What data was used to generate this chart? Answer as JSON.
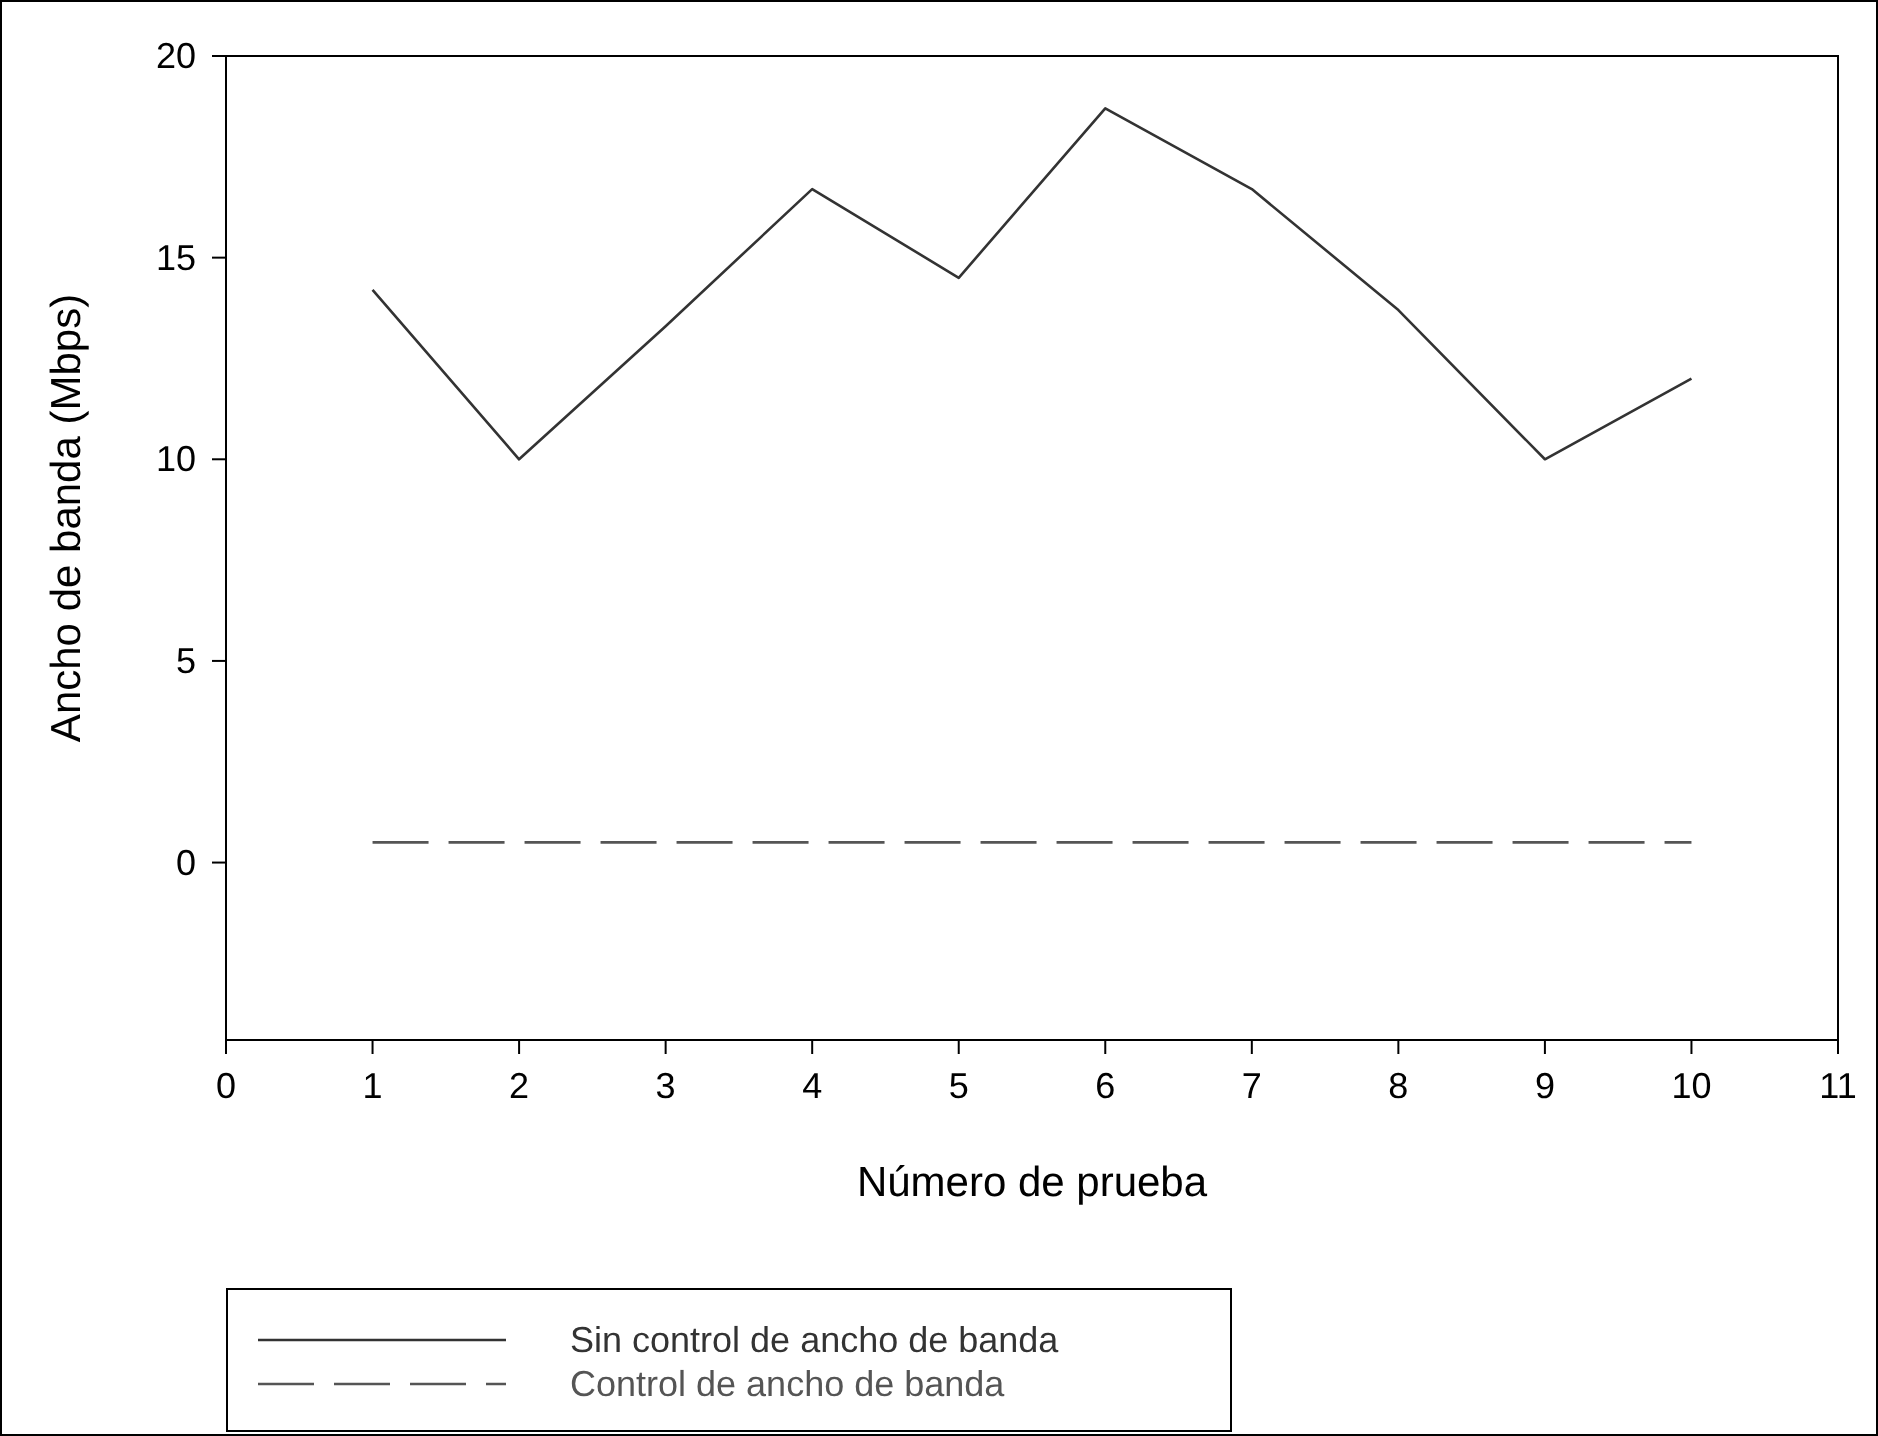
{
  "chart_data": {
    "type": "line",
    "xlabel": "Número de prueba",
    "ylabel": "Ancho de banda (Mbps)",
    "x": [
      1,
      2,
      3,
      4,
      5,
      6,
      7,
      8,
      9,
      10
    ],
    "series": [
      {
        "name": "Sin control de ancho de banda",
        "color": "#333333",
        "line_style": "solid",
        "values": [
          14.2,
          10.0,
          13.3,
          16.7,
          14.5,
          18.7,
          16.7,
          13.7,
          10.0,
          12.0
        ]
      },
      {
        "name": "Control de ancho de banda",
        "color": "#555555",
        "line_style": "dashed",
        "values": [
          0.5,
          0.5,
          0.5,
          0.5,
          0.5,
          0.5,
          0.5,
          0.5,
          0.5,
          0.5
        ]
      }
    ],
    "xlim": [
      0,
      11
    ],
    "xticks": [
      0,
      1,
      2,
      3,
      4,
      5,
      6,
      7,
      8,
      9,
      10,
      11
    ],
    "ylim": [
      -4.4,
      20
    ],
    "yticks": [
      0,
      5,
      10,
      15,
      20
    ],
    "grid": false,
    "legend": "bottom left",
    "marker": "none"
  }
}
